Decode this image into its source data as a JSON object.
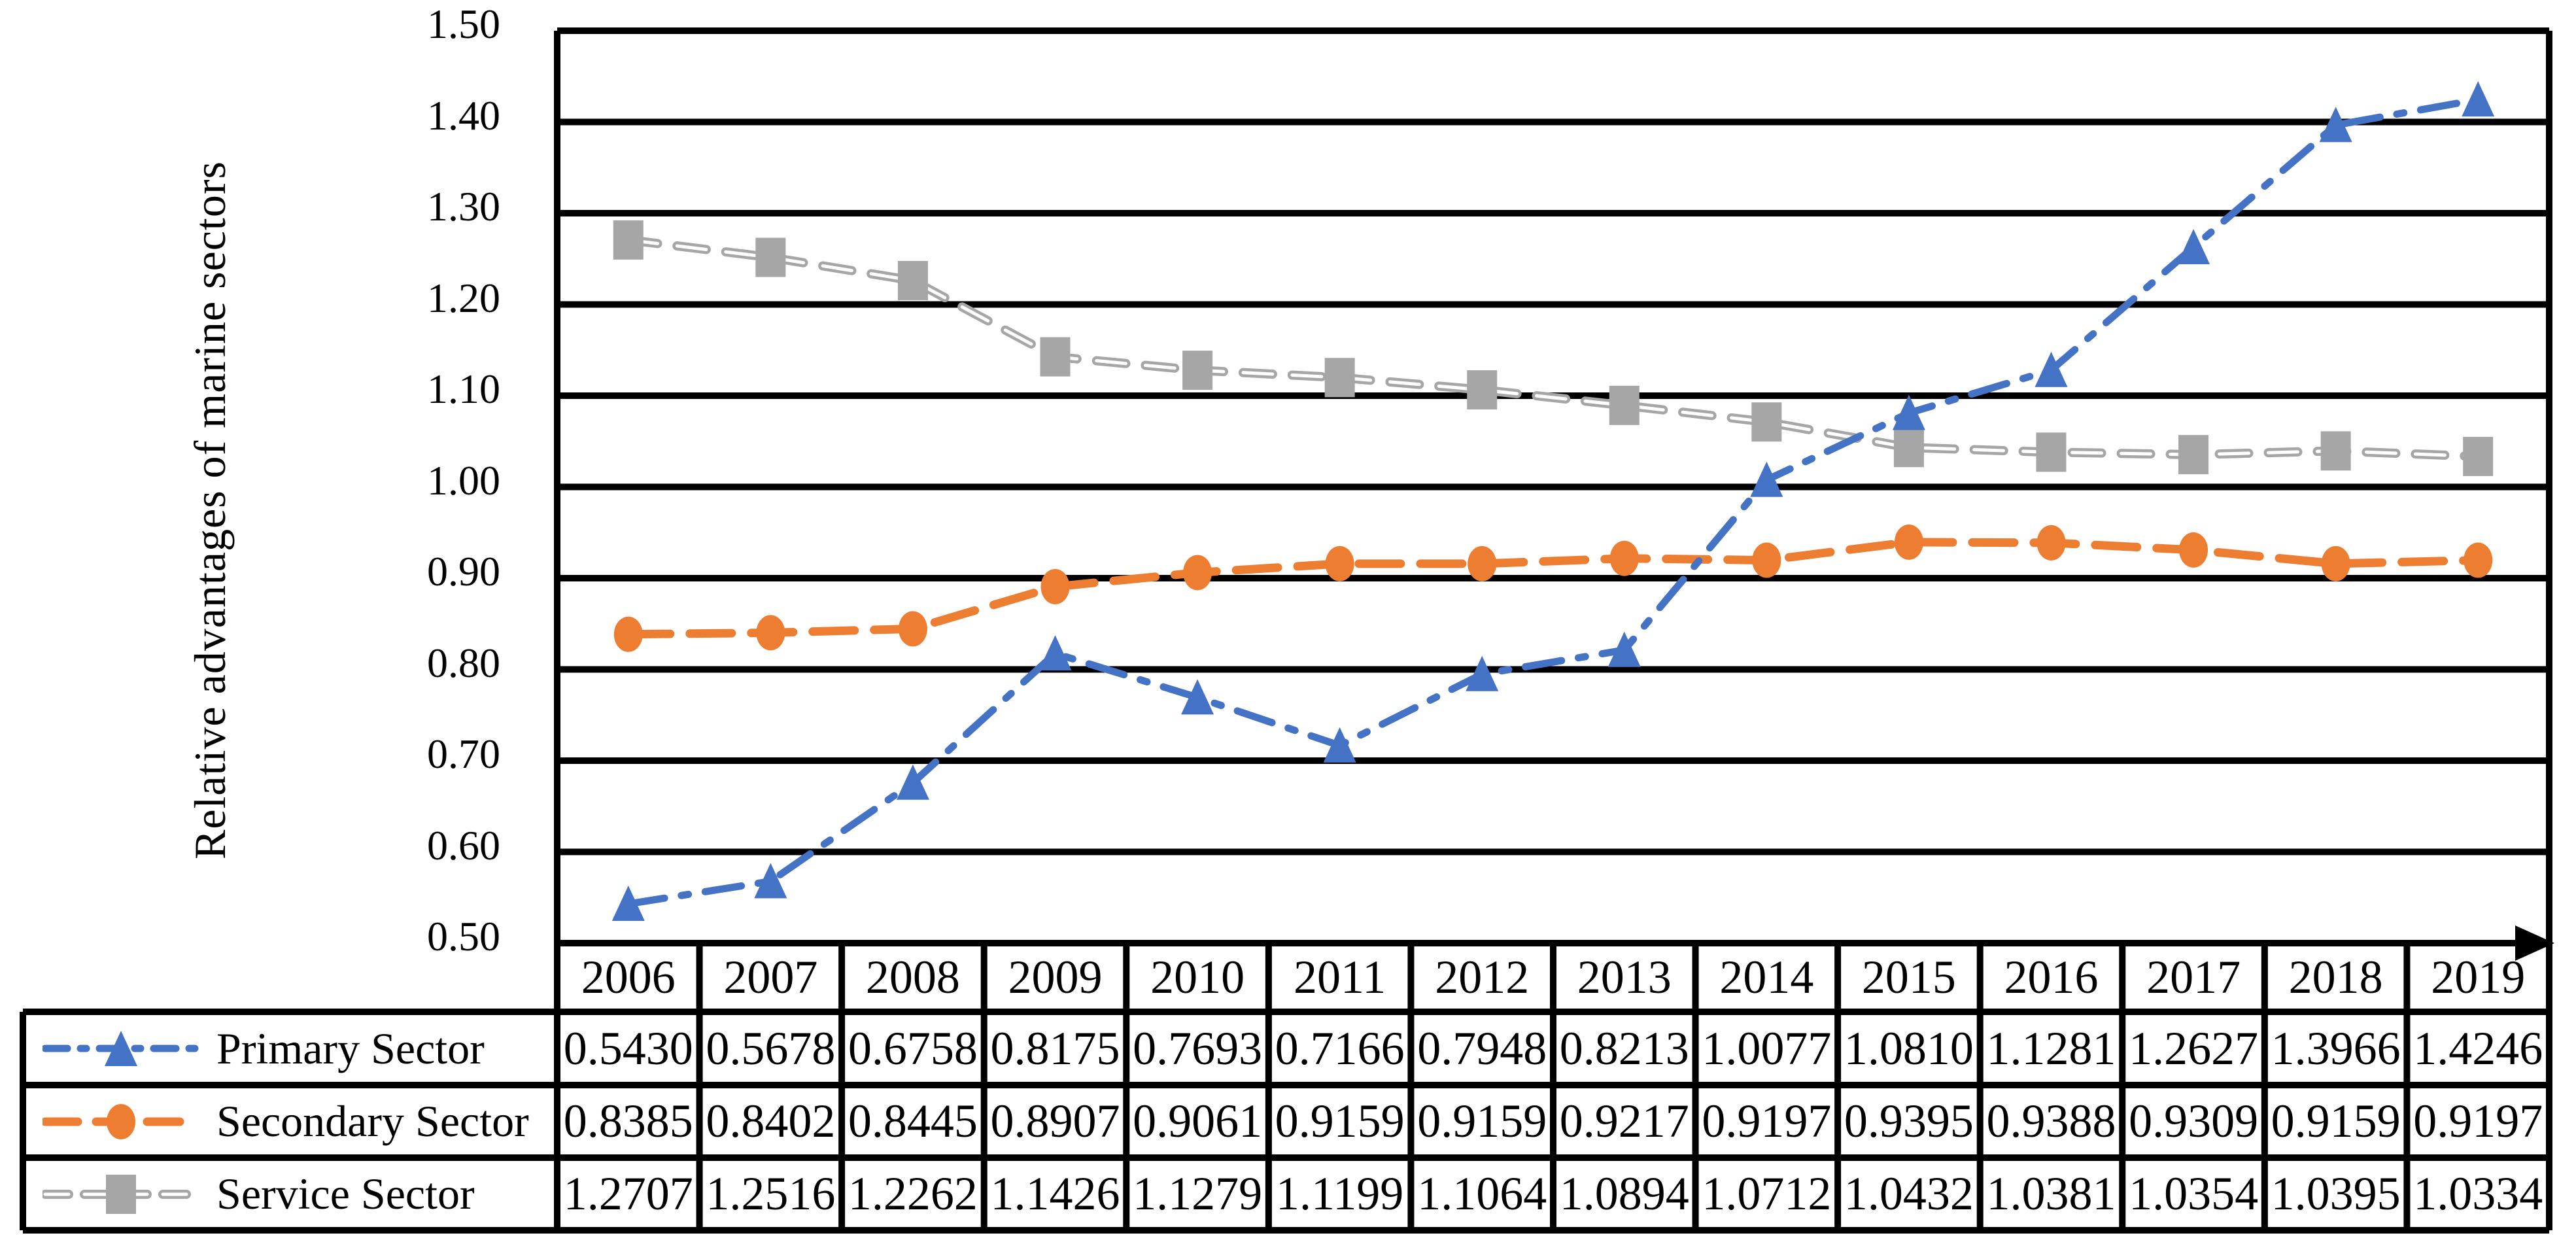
{
  "chart_data": {
    "type": "line",
    "title": "",
    "ylabel": "Relative advantages of marine sectors",
    "x_categories": [
      "2006",
      "2007",
      "2008",
      "2009",
      "2010",
      "2011",
      "2012",
      "2013",
      "2014",
      "2015",
      "2016",
      "2017",
      "2018",
      "2019"
    ],
    "ylim": [
      0.5,
      1.5
    ],
    "y_tick_step": 0.1,
    "y_ticks": [
      "1.50",
      "1.40",
      "1.30",
      "1.20",
      "1.10",
      "1.00",
      "0.90",
      "0.80",
      "0.70",
      "0.60",
      "0.50"
    ],
    "grid": "horizontal-black",
    "axis_arrow": "x-right",
    "legend_position": "table-left-column",
    "value_decimals": 4,
    "series": [
      {
        "name": "Primary Sector",
        "color": "#4472C4",
        "marker": "triangle",
        "line_style": "dash-dot",
        "values": [
          0.543,
          0.5678,
          0.6758,
          0.8175,
          0.7693,
          0.7166,
          0.7948,
          0.8213,
          1.0077,
          1.081,
          1.1281,
          1.2627,
          1.3966,
          1.4246
        ]
      },
      {
        "name": "Secondary Sector",
        "color": "#ED7D31",
        "marker": "circle",
        "line_style": "dashed",
        "values": [
          0.8385,
          0.8402,
          0.8445,
          0.8907,
          0.9061,
          0.9159,
          0.9159,
          0.9217,
          0.9197,
          0.9395,
          0.9388,
          0.9309,
          0.9159,
          0.9197
        ]
      },
      {
        "name": "Service Sector",
        "color": "#A6A6A6",
        "marker": "square",
        "line_style": "dashed-hollow",
        "values": [
          1.2707,
          1.2516,
          1.2262,
          1.1426,
          1.1279,
          1.1199,
          1.1064,
          1.0894,
          1.0712,
          1.0432,
          1.0381,
          1.0354,
          1.0395,
          1.0334
        ]
      }
    ],
    "colors": {
      "grid": "#000000",
      "text": "#000000",
      "background": "#FFFFFF"
    }
  }
}
